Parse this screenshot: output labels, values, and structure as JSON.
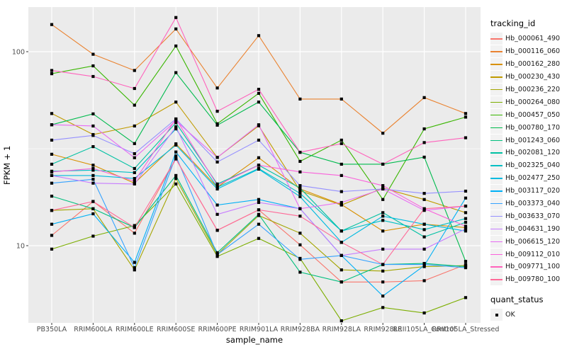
{
  "chart_data": {
    "type": "line",
    "title": "",
    "xlabel": "sample_name",
    "ylabel": "FPKM + 1",
    "y_scale": "log10",
    "y_major_ticks": [
      10,
      100
    ],
    "y_minor_ticks": [
      31.6
    ],
    "ylim": [
      4,
      170
    ],
    "grid": "on",
    "legend_position": "right",
    "panel_bg": "#EBEBEB",
    "grid_color": "#FFFFFF",
    "key_bg": "#F2F2F2",
    "tick_label_color": "#4D4D4D",
    "point_color": "#000000",
    "categories": [
      "PB350LA",
      "RRIM600LA",
      "RRIM600LE",
      "RRIM600SE",
      "RRIM600PE",
      "RRIM901LA",
      "RRIM928BA",
      "RRIM928LA",
      "RRIM928LE",
      "RRII105LA_Control",
      "RRII105LA_Stressed"
    ],
    "series": [
      {
        "name": "Hb_000061_490",
        "color": "#F8766D",
        "values": [
          11.3,
          16.9,
          11.6,
          28,
          12,
          15.3,
          10.1,
          6.5,
          6.5,
          6.6,
          8
        ]
      },
      {
        "name": "Hb_000116_060",
        "color": "#EA8331",
        "values": [
          138,
          97,
          80,
          131,
          65,
          121,
          57,
          57,
          38,
          58,
          48
        ]
      },
      {
        "name": "Hb_000162_280",
        "color": "#D89000",
        "values": [
          29.6,
          26,
          21,
          33.5,
          20,
          28.4,
          19.6,
          16.3,
          11.9,
          12.9,
          12.4
        ]
      },
      {
        "name": "Hb_000230_430",
        "color": "#C09B00",
        "values": [
          48,
          37.4,
          41.4,
          55,
          28.5,
          41.5,
          19.2,
          16.2,
          19.8,
          17.3,
          14.8
        ]
      },
      {
        "name": "Hb_000236_220",
        "color": "#A3A500",
        "values": [
          15.2,
          15.5,
          7.5,
          22.2,
          9,
          14.3,
          11.6,
          7.5,
          7.4,
          7.8,
          7.9
        ]
      },
      {
        "name": "Hb_000264_080",
        "color": "#7CAE00",
        "values": [
          9.6,
          11.2,
          12.7,
          20.8,
          8.8,
          10.9,
          8.6,
          4.1,
          4.8,
          4.5,
          5.4
        ]
      },
      {
        "name": "Hb_000457_050",
        "color": "#39B600",
        "values": [
          77,
          84.5,
          53,
          107,
          42.5,
          61,
          27.2,
          35,
          17.3,
          40,
          46
        ]
      },
      {
        "name": "Hb_000780_170",
        "color": "#00BB4E",
        "values": [
          42,
          47.8,
          33.6,
          78,
          41.8,
          55,
          30.3,
          26.3,
          26.3,
          28.6,
          8.3
        ]
      },
      {
        "name": "Hb_001243_060",
        "color": "#00BF7D",
        "values": [
          18,
          15.5,
          12.4,
          23,
          9.2,
          14.5,
          7.3,
          6.5,
          8,
          8.1,
          7.8
        ]
      },
      {
        "name": "Hb_002081_120",
        "color": "#00C1A3",
        "values": [
          26.3,
          32.4,
          25,
          43,
          20.8,
          26,
          19.8,
          11.9,
          14.8,
          11.1,
          13.2
        ]
      },
      {
        "name": "Hb_002325_040",
        "color": "#00BFC4",
        "values": [
          24.2,
          24.5,
          23.8,
          40,
          20,
          25,
          18.6,
          11.9,
          13.5,
          12.1,
          13.8
        ]
      },
      {
        "name": "Hb_002477_250",
        "color": "#00BAE0",
        "values": [
          23,
          23,
          22.2,
          33,
          19.6,
          24.8,
          17.9,
          10.4,
          14.2,
          12.9,
          11.9
        ]
      },
      {
        "name": "Hb_003117_020",
        "color": "#00B0F6",
        "values": [
          12.9,
          14.6,
          8.2,
          30.4,
          16.2,
          17.3,
          15.5,
          8.9,
          5.5,
          7.9,
          17.6
        ]
      },
      {
        "name": "Hb_003373_040",
        "color": "#35A2FF",
        "values": [
          21,
          22,
          7.7,
          29,
          9,
          12.9,
          8.5,
          8.9,
          8,
          8,
          7.7
        ]
      },
      {
        "name": "Hb_003633_070",
        "color": "#9590FF",
        "values": [
          35,
          37,
          29.8,
          45,
          27,
          35,
          20.4,
          19,
          19.6,
          18.6,
          19.1
        ]
      },
      {
        "name": "Hb_004631_190",
        "color": "#C77CFF",
        "values": [
          23,
          21,
          20.8,
          41,
          14.5,
          16.7,
          15.5,
          8.9,
          9.6,
          9.6,
          12.2
        ]
      },
      {
        "name": "Hb_006615_120",
        "color": "#E76BF3",
        "values": [
          42,
          41.4,
          28.4,
          44,
          28.5,
          42,
          15.5,
          16.7,
          19.6,
          15.2,
          16
        ]
      },
      {
        "name": "Hb_009112_010",
        "color": "#FA62DB",
        "values": [
          24,
          25,
          21.5,
          45,
          20.5,
          26,
          24,
          23,
          20.4,
          15.5,
          12.6
        ]
      },
      {
        "name": "Hb_009771_100",
        "color": "#FF62BC",
        "values": [
          80,
          74.5,
          64.6,
          150,
          49.3,
          64,
          30.3,
          33.6,
          26.3,
          34,
          36
        ]
      },
      {
        "name": "Hb_009780_100",
        "color": "#FF6A98",
        "values": [
          15.2,
          16.9,
          12.4,
          28,
          12,
          15.3,
          14.2,
          10.4,
          8,
          15.5,
          16
        ]
      }
    ],
    "legend": {
      "series_title": "tracking_id",
      "shape_title": "quant_status",
      "shape_label": "OK"
    }
  }
}
